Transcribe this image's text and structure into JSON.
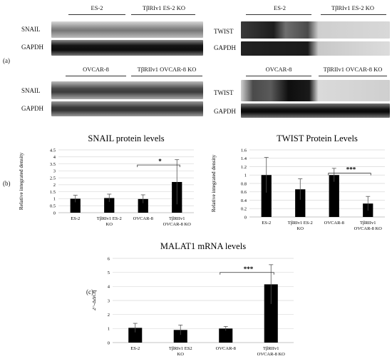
{
  "panels": {
    "a": "(a)",
    "b": "(b)",
    "c": "(c)"
  },
  "western": {
    "es2_snail": {
      "group1": "ES-2",
      "group2": "TβRIv1 ES-2 KO",
      "protein": "SNAIL",
      "control": "GAPDH"
    },
    "es2_twist": {
      "group1": "ES-2",
      "group2": "TβRIv1 ES-2 KO",
      "protein": "TWIST",
      "control": "GAPDH"
    },
    "ovcar_snail": {
      "group1": "OVCAR-8",
      "group2": "TβRIIv1 OVCAR-8 KO",
      "protein": "SNAIL",
      "control": "GAPDH"
    },
    "ovcar_twist": {
      "group1": "OVCAR-8",
      "group2": "TβRIIv1 OVCAR-8 KO",
      "protein": "TWIST",
      "control": "GAPDH"
    }
  },
  "chart_data": [
    {
      "type": "bar",
      "title": "SNAIL protein levels",
      "ylabel": "Relative integrated density",
      "xlabel": "",
      "categories": [
        "ES-2",
        "TβRIv1 ES-2 KO",
        "OVCAR-8",
        "TβRIIv1 OVCAR-8 KO"
      ],
      "values": [
        1.0,
        1.05,
        0.98,
        2.2
      ],
      "errors": [
        0.25,
        0.28,
        0.3,
        1.6
      ],
      "ylim": [
        0,
        4.5
      ],
      "yticks": [
        "0",
        "0.5",
        "1",
        "1.5",
        "2",
        "2.5",
        "3",
        "3.5",
        "4",
        "4.5"
      ],
      "significance": {
        "from": 2,
        "to": 3,
        "label": "*"
      },
      "bar_color": "#000000",
      "grid": true
    },
    {
      "type": "bar",
      "title": "TWIST Protein Levels",
      "ylabel": "Relative integrated density",
      "xlabel": "",
      "categories": [
        "ES-2",
        "TβRIv1 ES-2 KO",
        "OVCAR-8",
        "TβRIIv1 OVCAR-8 KO"
      ],
      "values": [
        1.0,
        0.66,
        1.0,
        0.32
      ],
      "errors": [
        0.42,
        0.25,
        0.16,
        0.17
      ],
      "ylim": [
        0,
        1.6
      ],
      "yticks": [
        "0",
        "0.2",
        "0.4",
        "0.6",
        "0.8",
        "1",
        "1.2",
        "1.4",
        "1.6"
      ],
      "significance": {
        "from": 2,
        "to": 3,
        "label": "***"
      },
      "bar_color": "#000000",
      "grid": true
    },
    {
      "type": "bar",
      "title": "MALAT1 mRNA levels",
      "ylabel": "2^-ΔΔCq",
      "xlabel": "",
      "categories": [
        "ES-2",
        "TβRIv1 ES2 KO",
        "OVCAR-8",
        "TβRIIv1 OVCAR-8 KO"
      ],
      "values": [
        1.05,
        0.9,
        1.0,
        4.15
      ],
      "errors": [
        0.32,
        0.35,
        0.15,
        1.4
      ],
      "ylim": [
        0,
        6
      ],
      "yticks": [
        "0",
        "1",
        "2",
        "3",
        "4",
        "5",
        "6"
      ],
      "significance": {
        "from": 2,
        "to": 3,
        "label": "***"
      },
      "bar_color": "#000000",
      "grid": true
    }
  ]
}
